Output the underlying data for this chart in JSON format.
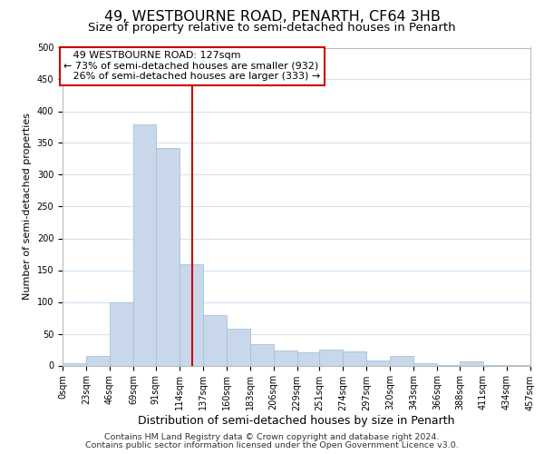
{
  "title": "49, WESTBOURNE ROAD, PENARTH, CF64 3HB",
  "subtitle": "Size of property relative to semi-detached houses in Penarth",
  "xlabel": "Distribution of semi-detached houses by size in Penarth",
  "ylabel": "Number of semi-detached properties",
  "bar_color": "#c8d8ea",
  "bar_edge_color": "#a8c0d8",
  "grid_color": "#d0e4f4",
  "bin_edges": [
    0,
    23,
    46,
    69,
    91,
    114,
    137,
    160,
    183,
    206,
    229,
    251,
    274,
    297,
    320,
    343,
    366,
    388,
    411,
    434,
    457
  ],
  "bin_labels": [
    "0sqm",
    "23sqm",
    "46sqm",
    "69sqm",
    "91sqm",
    "114sqm",
    "137sqm",
    "160sqm",
    "183sqm",
    "206sqm",
    "229sqm",
    "251sqm",
    "274sqm",
    "297sqm",
    "320sqm",
    "343sqm",
    "366sqm",
    "388sqm",
    "411sqm",
    "434sqm",
    "457sqm"
  ],
  "counts": [
    3,
    15,
    100,
    380,
    342,
    160,
    80,
    58,
    33,
    23,
    21,
    25,
    22,
    8,
    15,
    3,
    1,
    7,
    1,
    1
  ],
  "ylim": [
    0,
    500
  ],
  "yticks": [
    0,
    50,
    100,
    150,
    200,
    250,
    300,
    350,
    400,
    450,
    500
  ],
  "property_size": 127,
  "property_label": "49 WESTBOURNE ROAD: 127sqm",
  "pct_smaller": 73,
  "count_smaller": 932,
  "pct_larger": 26,
  "count_larger": 333,
  "vline_color": "#cc0000",
  "annotation_box_edge": "#cc0000",
  "footer_line1": "Contains HM Land Registry data © Crown copyright and database right 2024.",
  "footer_line2": "Contains public sector information licensed under the Open Government Licence v3.0.",
  "title_fontsize": 11.5,
  "subtitle_fontsize": 9.5,
  "xlabel_fontsize": 9,
  "ylabel_fontsize": 8,
  "tick_fontsize": 7,
  "footer_fontsize": 6.8,
  "annot_fontsize": 8
}
